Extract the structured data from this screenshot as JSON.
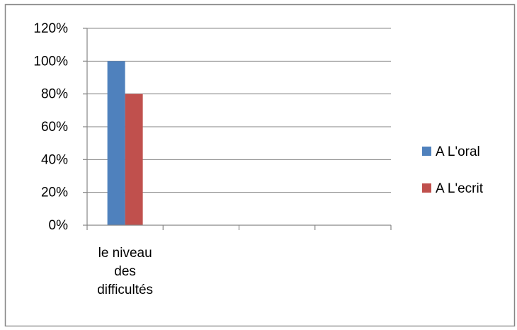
{
  "chart_data": {
    "type": "bar",
    "categories": [
      "le niveau des difficultés",
      "",
      "",
      ""
    ],
    "category_label_lines": [
      [
        "le niveau",
        "des",
        "difficultés"
      ],
      [],
      [],
      []
    ],
    "series": [
      {
        "name": "A L'oral",
        "values": [
          100,
          null,
          null,
          null
        ],
        "color": "#4F81BD"
      },
      {
        "name": "A L'ecrit",
        "values": [
          80,
          null,
          null,
          null
        ],
        "color": "#C0504D"
      }
    ],
    "y_ticks": [
      "0%",
      "20%",
      "40%",
      "60%",
      "80%",
      "100%",
      "120%"
    ],
    "ylim": [
      0,
      120
    ],
    "y_unit": "%",
    "grid": true,
    "legend": "right",
    "title": "",
    "xlabel": "",
    "ylabel": ""
  }
}
